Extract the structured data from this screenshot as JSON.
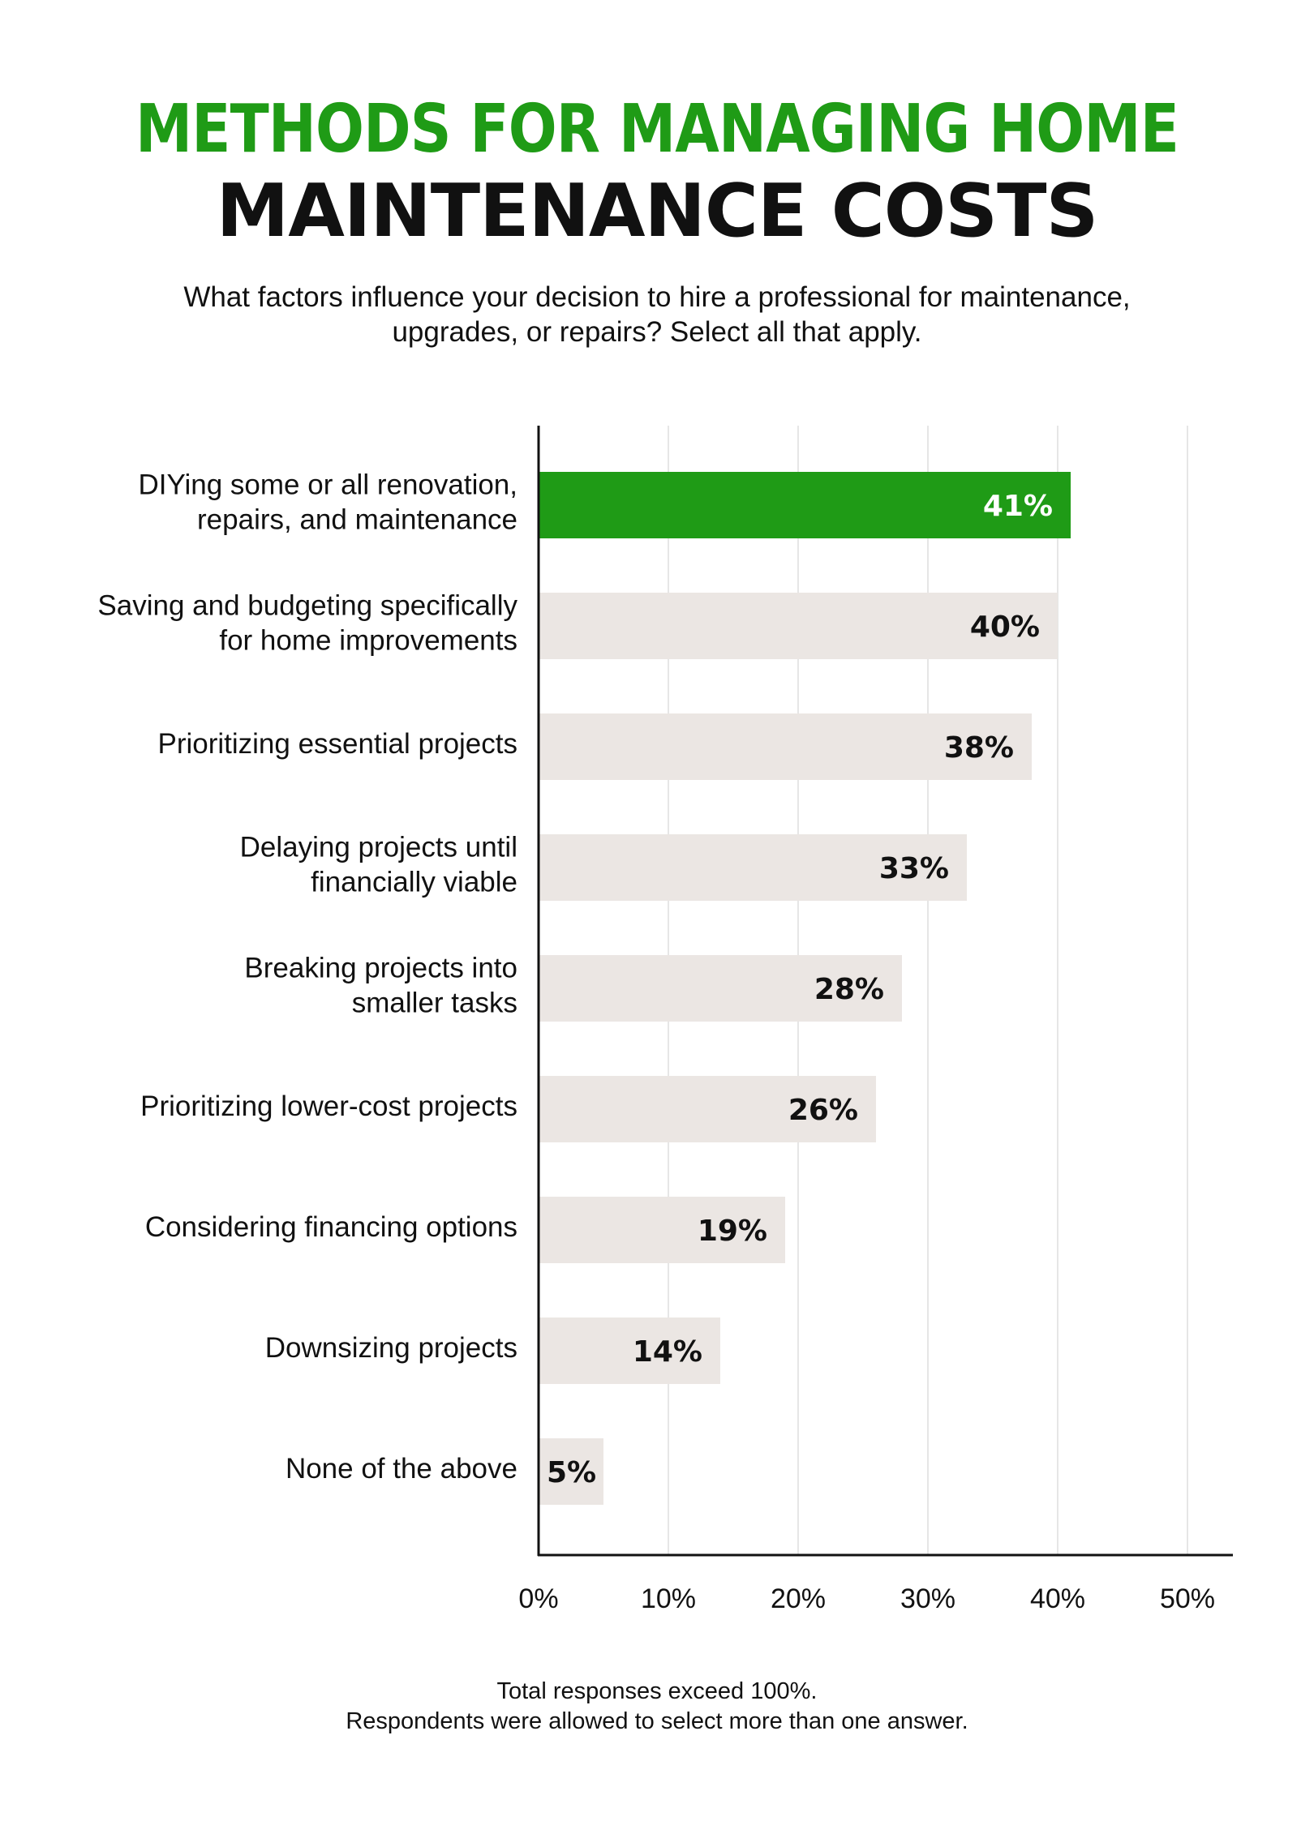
{
  "header": {
    "title_line1": "METHODS FOR MANAGING HOME",
    "title_line2": "MAINTENANCE COSTS",
    "question_line1": "What factors influence your decision to hire a professional for maintenance,",
    "question_line2": "upgrades, or repairs? Select all that apply."
  },
  "chart_data": {
    "type": "bar",
    "orientation": "horizontal",
    "categories": [
      [
        "DIYing some or all renovation,",
        "repairs, and maintenance"
      ],
      [
        "Saving and budgeting specifically",
        "for home improvements"
      ],
      [
        "Prioritizing essential projects"
      ],
      [
        "Delaying projects until",
        "financially viable"
      ],
      [
        "Breaking projects into",
        "smaller tasks"
      ],
      [
        "Prioritizing lower-cost projects"
      ],
      [
        "Considering financing options"
      ],
      [
        "Downsizing projects"
      ],
      [
        "None of the above"
      ]
    ],
    "values": [
      41,
      40,
      38,
      33,
      28,
      26,
      19,
      14,
      5
    ],
    "value_labels": [
      "41%",
      "40%",
      "38%",
      "33%",
      "28%",
      "26%",
      "19%",
      "14%",
      "5%"
    ],
    "x_ticks": [
      0,
      10,
      20,
      30,
      40,
      50
    ],
    "x_tick_labels": [
      "0%",
      "10%",
      "20%",
      "30%",
      "40%",
      "50%"
    ],
    "xlim": [
      0,
      53.6
    ],
    "grid": true,
    "colors": {
      "highlight": "#1f9b16",
      "bar": "#ebe6e3",
      "highlight_label": "#ffffff",
      "label": "#111111",
      "grid": "#e6e6e6",
      "axis": "#111111"
    }
  },
  "footnote": {
    "line1": "Total responses exceed 100%.",
    "line2": "Respondents were allowed to select more than one answer."
  }
}
